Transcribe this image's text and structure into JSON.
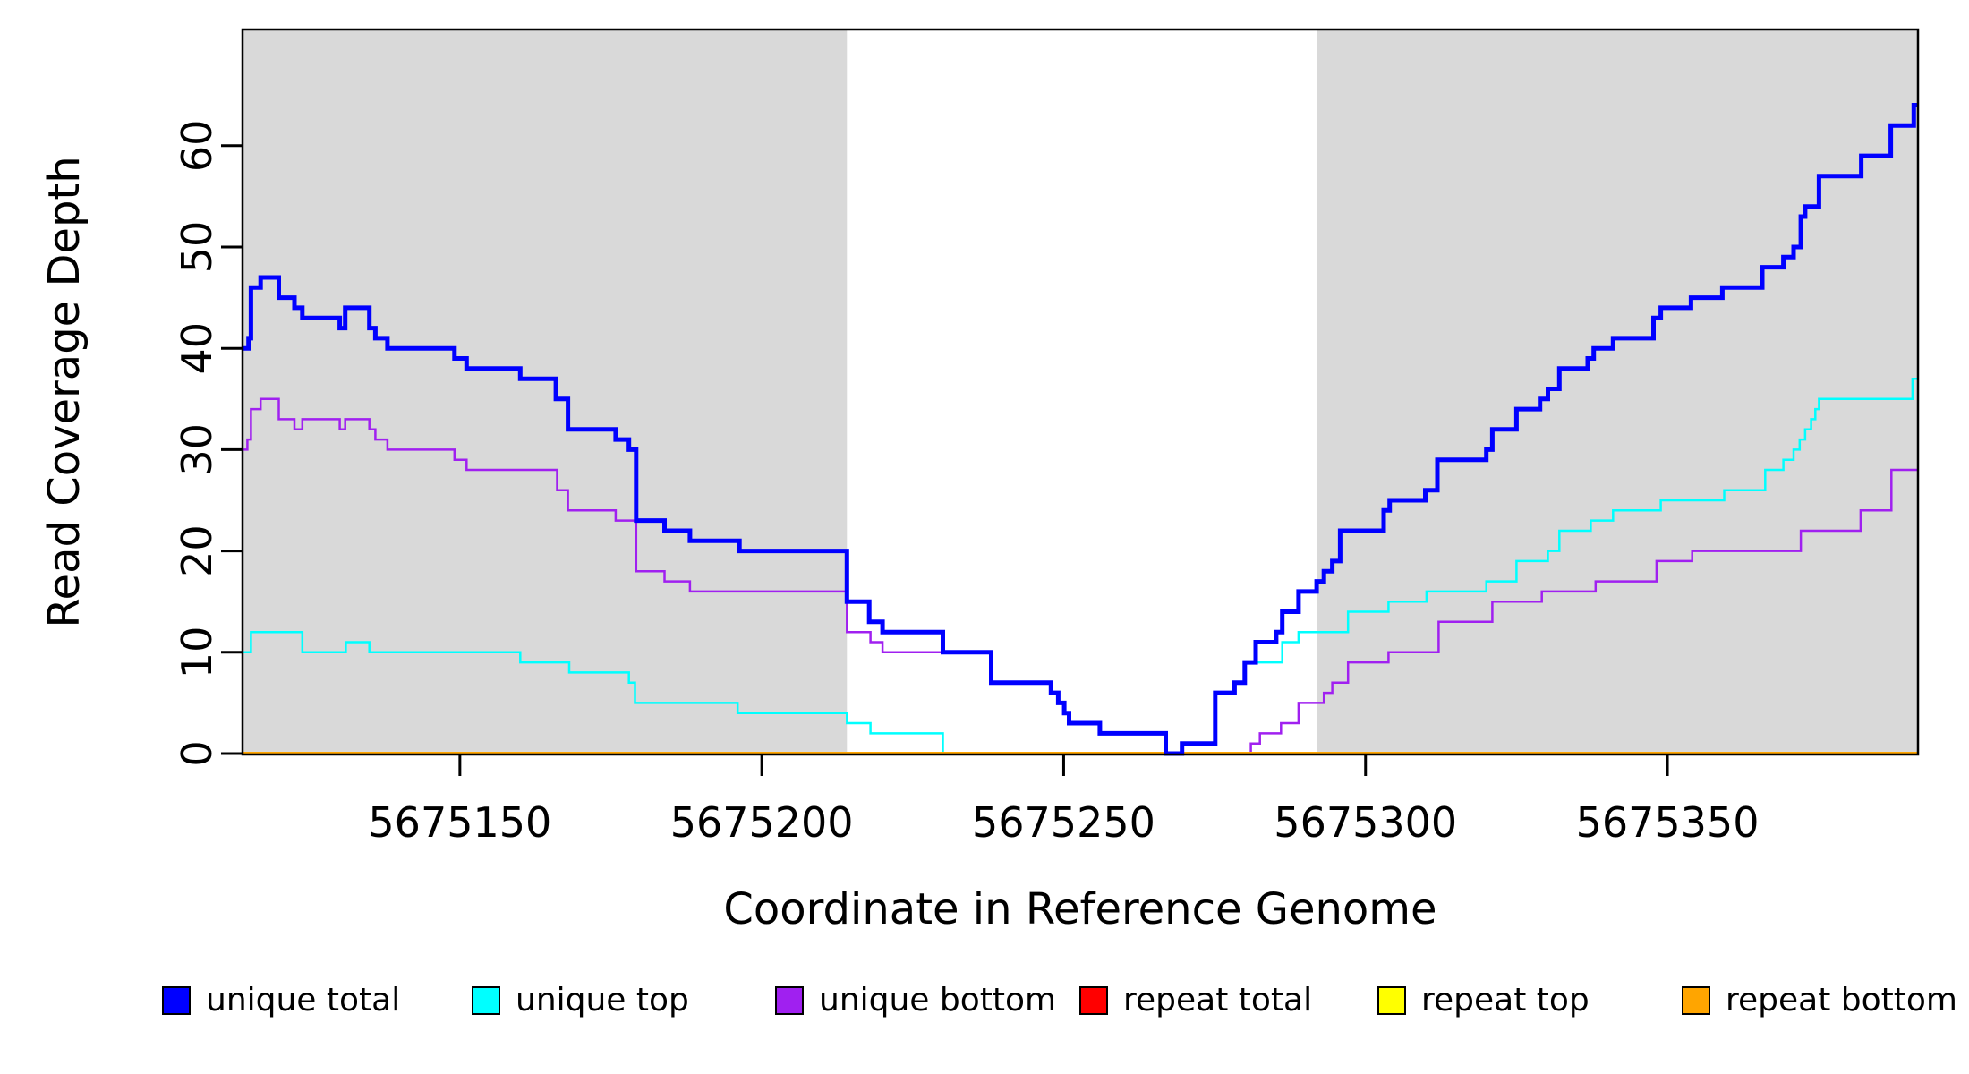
{
  "figure": {
    "background": "#ffffff",
    "shade_color": "#d9d9d9",
    "axis_color": "#000000"
  },
  "chart_data": {
    "type": "line",
    "subtype": "step-coverage",
    "title": "",
    "xlabel": "Coordinate in Reference Genome",
    "ylabel": "Read Coverage Depth",
    "xlim": [
      5675114,
      5675391.5
    ],
    "ylim": [
      0,
      71.5
    ],
    "grid": false,
    "x_ticks": [
      5675150,
      5675200,
      5675250,
      5675300,
      5675350
    ],
    "x_tick_labels": [
      "5675150",
      "5675200",
      "5675250",
      "5675300",
      "5675350"
    ],
    "y_ticks": [
      0,
      10,
      20,
      30,
      40,
      50,
      60
    ],
    "y_tick_labels": [
      "0",
      "10",
      "20",
      "30",
      "40",
      "50",
      "60"
    ],
    "shaded_regions": [
      {
        "name": "left-repeat-shade",
        "from": 5675114,
        "to": 5675214.1
      },
      {
        "name": "right-repeat-shade",
        "from": 5675292,
        "to": 5675391.5
      }
    ],
    "unshaded_region": {
      "name": "unique-region",
      "from": 5675214.1,
      "to": 5675292
    },
    "draw_order": [
      "repeat total",
      "repeat top",
      "unique bottom",
      "unique top",
      "repeat bottom",
      "unique total"
    ],
    "series": [
      {
        "name": "unique total",
        "color": "#0000FF",
        "line_width": 5,
        "points": [
          [
            5675114,
            40
          ],
          [
            5675115,
            41
          ],
          [
            5675115.4,
            46
          ],
          [
            5675117,
            47
          ],
          [
            5675120,
            45
          ],
          [
            5675122.6,
            44
          ],
          [
            5675123.9,
            43
          ],
          [
            5675130.1,
            42
          ],
          [
            5675131,
            44
          ],
          [
            5675135,
            42
          ],
          [
            5675136,
            41
          ],
          [
            5675138,
            40
          ],
          [
            5675149.1,
            39
          ],
          [
            5675151.1,
            38
          ],
          [
            5675160,
            37
          ],
          [
            5675165.9,
            35
          ],
          [
            5675167.9,
            32
          ],
          [
            5675175.8,
            31
          ],
          [
            5675178,
            30
          ],
          [
            5675179.2,
            23
          ],
          [
            5675183.9,
            22
          ],
          [
            5675188.1,
            21
          ],
          [
            5675196.3,
            20
          ],
          [
            5675214.1,
            15
          ],
          [
            5675217.8,
            13
          ],
          [
            5675220,
            12
          ],
          [
            5675230,
            10
          ],
          [
            5675238,
            7
          ],
          [
            5675247.9,
            6
          ],
          [
            5675249.1,
            5
          ],
          [
            5675250.1,
            4
          ],
          [
            5675250.9,
            3
          ],
          [
            5675256,
            2
          ],
          [
            5675266.9,
            0
          ],
          [
            5675269.6,
            1
          ],
          [
            5675275.1,
            6
          ],
          [
            5675278.3,
            7
          ],
          [
            5675280,
            9
          ],
          [
            5675281.8,
            11
          ],
          [
            5675285.2,
            12
          ],
          [
            5675286.2,
            14
          ],
          [
            5675288.9,
            16
          ],
          [
            5675291.9,
            17
          ],
          [
            5675293.1,
            18
          ],
          [
            5675294.5,
            19
          ],
          [
            5675295.8,
            22
          ],
          [
            5675303,
            24
          ],
          [
            5675304,
            25
          ],
          [
            5675309.9,
            26
          ],
          [
            5675311.9,
            29
          ],
          [
            5675320,
            30
          ],
          [
            5675321,
            32
          ],
          [
            5675325,
            34
          ],
          [
            5675328.9,
            35
          ],
          [
            5675330.2,
            36
          ],
          [
            5675332.1,
            38
          ],
          [
            5675336.8,
            39
          ],
          [
            5675337.8,
            40
          ],
          [
            5675341,
            41
          ],
          [
            5675347.7,
            43
          ],
          [
            5675348.9,
            44
          ],
          [
            5675353.9,
            45
          ],
          [
            5675359.1,
            46
          ],
          [
            5675365.7,
            48
          ],
          [
            5675369.2,
            49
          ],
          [
            5675370.9,
            50
          ],
          [
            5675372.1,
            53
          ],
          [
            5675372.8,
            54
          ],
          [
            5675375.1,
            57
          ],
          [
            5675382.1,
            59
          ],
          [
            5675387,
            62
          ],
          [
            5675390.8,
            64
          ]
        ]
      },
      {
        "name": "unique top",
        "color": "#00FFFF",
        "line_width": 2.5,
        "points": [
          [
            5675114,
            10
          ],
          [
            5675115.4,
            12
          ],
          [
            5675123.9,
            10
          ],
          [
            5675131.1,
            11
          ],
          [
            5675135,
            10
          ],
          [
            5675160,
            9
          ],
          [
            5675168.1,
            8
          ],
          [
            5675178,
            7
          ],
          [
            5675179,
            5
          ],
          [
            5675196,
            4
          ],
          [
            5675214.1,
            3
          ],
          [
            5675218,
            2
          ],
          [
            5675230,
            0
          ],
          [
            5675269.6,
            1
          ],
          [
            5675275.1,
            6
          ],
          [
            5675278.3,
            7
          ],
          [
            5675280,
            9
          ],
          [
            5675286.2,
            11
          ],
          [
            5675288.9,
            12
          ],
          [
            5675297.1,
            14
          ],
          [
            5675303.8,
            15
          ],
          [
            5675310.1,
            16
          ],
          [
            5675320,
            17
          ],
          [
            5675325,
            19
          ],
          [
            5675330.2,
            20
          ],
          [
            5675332.1,
            22
          ],
          [
            5675337.3,
            23
          ],
          [
            5675341,
            24
          ],
          [
            5675348.9,
            25
          ],
          [
            5675359.4,
            26
          ],
          [
            5675366.2,
            28
          ],
          [
            5675369.2,
            29
          ],
          [
            5675370.9,
            30
          ],
          [
            5675371.9,
            31
          ],
          [
            5675372.8,
            32
          ],
          [
            5675373.8,
            33
          ],
          [
            5675374.5,
            34
          ],
          [
            5675375.1,
            35
          ],
          [
            5675390.6,
            37
          ]
        ]
      },
      {
        "name": "unique bottom",
        "color": "#A020F0",
        "line_width": 2.5,
        "points": [
          [
            5675114,
            30
          ],
          [
            5675114.8,
            31
          ],
          [
            5675115.4,
            34
          ],
          [
            5675117,
            35
          ],
          [
            5675120,
            33
          ],
          [
            5675122.6,
            32
          ],
          [
            5675123.9,
            33
          ],
          [
            5675130.1,
            32
          ],
          [
            5675131,
            33
          ],
          [
            5675135,
            32
          ],
          [
            5675136,
            31
          ],
          [
            5675138,
            30
          ],
          [
            5675149.1,
            29
          ],
          [
            5675151.1,
            28
          ],
          [
            5675166.1,
            26
          ],
          [
            5675167.9,
            24
          ],
          [
            5675175.8,
            23
          ],
          [
            5675179.2,
            18
          ],
          [
            5675183.9,
            17
          ],
          [
            5675188.1,
            16
          ],
          [
            5675214.1,
            12
          ],
          [
            5675218,
            11
          ],
          [
            5675220,
            10
          ],
          [
            5675238,
            7
          ],
          [
            5675247.9,
            6
          ],
          [
            5675249.1,
            5
          ],
          [
            5675250.1,
            4
          ],
          [
            5675250.9,
            3
          ],
          [
            5675256,
            2
          ],
          [
            5675266.9,
            0
          ],
          [
            5675281,
            1
          ],
          [
            5675282.5,
            2
          ],
          [
            5675286,
            3
          ],
          [
            5675288.9,
            5
          ],
          [
            5675293.1,
            6
          ],
          [
            5675294.5,
            7
          ],
          [
            5675297.1,
            9
          ],
          [
            5675303.8,
            10
          ],
          [
            5675312.1,
            13
          ],
          [
            5675321,
            15
          ],
          [
            5675329.2,
            16
          ],
          [
            5675338.1,
            17
          ],
          [
            5675348.2,
            19
          ],
          [
            5675354.1,
            20
          ],
          [
            5675372.1,
            22
          ],
          [
            5675382,
            24
          ],
          [
            5675387.1,
            28
          ]
        ]
      },
      {
        "name": "repeat total",
        "color": "#FF0000",
        "line_width": 2.5,
        "points": [
          [
            5675114,
            0
          ]
        ]
      },
      {
        "name": "repeat top",
        "color": "#FFFF00",
        "line_width": 2.5,
        "points": [
          [
            5675114,
            0
          ]
        ]
      },
      {
        "name": "repeat bottom",
        "color": "#FFA500",
        "line_width": 4,
        "points": [
          [
            5675114,
            0
          ]
        ]
      }
    ],
    "legend": {
      "position": "bottom",
      "items": [
        {
          "label": "unique total",
          "color": "#0000FF"
        },
        {
          "label": "unique top",
          "color": "#00FFFF"
        },
        {
          "label": "unique bottom",
          "color": "#A020F0"
        },
        {
          "label": "repeat total",
          "color": "#FF0000"
        },
        {
          "label": "repeat top",
          "color": "#FFFF00"
        },
        {
          "label": "repeat bottom",
          "color": "#FFA500"
        }
      ]
    }
  }
}
